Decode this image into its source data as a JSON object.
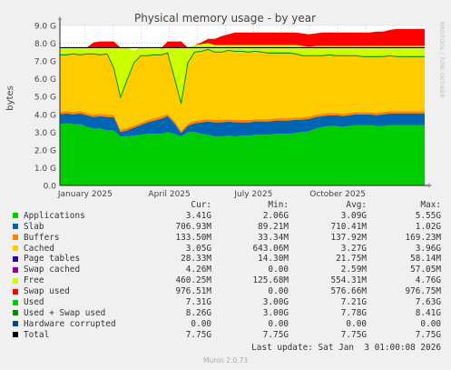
{
  "chart_data": {
    "type": "area",
    "title": "Physical memory usage - by year",
    "ylabel": "bytes",
    "side_text": "RRDTOOL / TOBI OETIKER",
    "ylim": [
      0,
      9.0
    ],
    "yticks": [
      "0.0",
      "1.0 G",
      "2.0 G",
      "3.0 G",
      "4.0 G",
      "5.0 G",
      "6.0 G",
      "7.0 G",
      "8.0 G",
      "9.0 G"
    ],
    "xticks": [
      "January 2025",
      "April 2025",
      "July 2025",
      "October 2025"
    ],
    "x_tick_months": [
      1,
      4,
      7,
      10
    ],
    "x_range_months": [
      0.1,
      13.1
    ],
    "grid": true,
    "total_line": 7.75,
    "series": [
      {
        "name": "Applications",
        "color": "#00cc00",
        "values": [
          3.45,
          3.5,
          3.45,
          3.45,
          3.3,
          3.2,
          3.2,
          3.1,
          3.1,
          2.75,
          2.75,
          2.8,
          2.85,
          2.9,
          2.9,
          2.9,
          3.0,
          2.9,
          2.75,
          3.0,
          3.0,
          2.9,
          2.85,
          2.75,
          2.75,
          2.8,
          2.75,
          2.8,
          2.8,
          2.85,
          2.85,
          2.85,
          2.9,
          2.9,
          2.9,
          2.95,
          3.0,
          3.05,
          3.2,
          3.3,
          3.35,
          3.35,
          3.3,
          3.35,
          3.4,
          3.4,
          3.4,
          3.35,
          3.35,
          3.4,
          3.4,
          3.4,
          3.4,
          3.4
        ]
      },
      {
        "name": "Slab",
        "color": "#0066b3",
        "values": [
          0.55,
          0.55,
          0.55,
          0.6,
          0.65,
          0.65,
          0.7,
          0.75,
          0.75,
          0.25,
          0.35,
          0.45,
          0.55,
          0.65,
          0.75,
          0.85,
          0.9,
          0.6,
          0.2,
          0.35,
          0.5,
          0.65,
          0.75,
          0.8,
          0.8,
          0.8,
          0.8,
          0.75,
          0.75,
          0.75,
          0.75,
          0.75,
          0.75,
          0.75,
          0.75,
          0.75,
          0.7,
          0.7,
          0.65,
          0.6,
          0.6,
          0.6,
          0.6,
          0.6,
          0.6,
          0.6,
          0.6,
          0.6,
          0.65,
          0.65,
          0.65,
          0.65,
          0.65,
          0.65
        ]
      },
      {
        "name": "Buffers",
        "color": "#ff8000",
        "values": [
          0.13,
          0.13,
          0.13,
          0.13,
          0.13,
          0.13,
          0.13,
          0.13,
          0.13,
          0.13,
          0.13,
          0.13,
          0.13,
          0.13,
          0.13,
          0.13,
          0.13,
          0.13,
          0.13,
          0.13,
          0.13,
          0.13,
          0.13,
          0.13,
          0.13,
          0.13,
          0.13,
          0.13,
          0.13,
          0.13,
          0.13,
          0.13,
          0.13,
          0.13,
          0.13,
          0.13,
          0.13,
          0.13,
          0.13,
          0.13,
          0.13,
          0.13,
          0.13,
          0.13,
          0.13,
          0.13,
          0.13,
          0.13,
          0.13,
          0.13,
          0.13,
          0.13,
          0.13,
          0.13
        ]
      },
      {
        "name": "Cached",
        "color": "#ffcc00",
        "values": [
          3.2,
          3.15,
          3.25,
          3.15,
          3.3,
          3.4,
          3.3,
          3.4,
          2.6,
          1.8,
          2.7,
          3.5,
          3.75,
          3.6,
          3.55,
          3.45,
          3.4,
          2.4,
          1.5,
          3.4,
          3.85,
          3.85,
          3.9,
          3.8,
          3.8,
          3.85,
          3.85,
          3.85,
          3.8,
          3.8,
          3.75,
          3.7,
          3.65,
          3.65,
          3.65,
          3.55,
          3.45,
          3.4,
          3.3,
          3.25,
          3.25,
          3.2,
          3.25,
          3.2,
          3.15,
          3.1,
          3.1,
          3.15,
          3.1,
          3.1,
          3.05,
          3.05,
          3.05,
          3.05
        ]
      },
      {
        "name": "Page tables",
        "color": "#330099",
        "values": [
          0.02,
          0.02,
          0.02,
          0.02,
          0.02,
          0.02,
          0.02,
          0.02,
          0.02,
          0.02,
          0.02,
          0.02,
          0.02,
          0.02,
          0.02,
          0.02,
          0.02,
          0.02,
          0.02,
          0.02,
          0.02,
          0.02,
          0.02,
          0.02,
          0.02,
          0.02,
          0.02,
          0.02,
          0.02,
          0.02,
          0.02,
          0.02,
          0.02,
          0.02,
          0.02,
          0.02,
          0.02,
          0.02,
          0.02,
          0.02,
          0.02,
          0.02,
          0.02,
          0.02,
          0.02,
          0.02,
          0.02,
          0.02,
          0.02,
          0.02,
          0.02,
          0.02,
          0.02,
          0.02
        ]
      },
      {
        "name": "Swap cached",
        "color": "#990099",
        "values": [
          0,
          0,
          0,
          0,
          0,
          0,
          0,
          0,
          0,
          0,
          0,
          0,
          0,
          0,
          0,
          0,
          0,
          0,
          0,
          0,
          0,
          0,
          0,
          0,
          0,
          0,
          0,
          0,
          0,
          0,
          0,
          0,
          0,
          0,
          0,
          0,
          0,
          0,
          0,
          0,
          0,
          0,
          0,
          0,
          0,
          0,
          0,
          0,
          0,
          0,
          0,
          0,
          0,
          0
        ]
      },
      {
        "name": "Free",
        "color": "#ccff00",
        "values": [
          0.4,
          0.4,
          0.35,
          0.4,
          0.35,
          0.35,
          0.4,
          0.35,
          1.15,
          2.8,
          1.8,
          0.7,
          0.45,
          0.4,
          0.35,
          0.35,
          0.3,
          1.7,
          3.15,
          0.85,
          0.4,
          0.4,
          0.35,
          0.4,
          0.4,
          0.3,
          0.35,
          0.35,
          0.4,
          0.35,
          0.4,
          0.45,
          0.45,
          0.45,
          0.45,
          0.5,
          0.55,
          0.5,
          0.55,
          0.55,
          0.5,
          0.55,
          0.55,
          0.55,
          0.55,
          0.6,
          0.6,
          0.6,
          0.6,
          0.55,
          0.6,
          0.6,
          0.6,
          0.6
        ]
      },
      {
        "name": "Swap used",
        "color": "#ff0000",
        "values": [
          0,
          0,
          0,
          0,
          0,
          0.3,
          0.35,
          0.35,
          0.35,
          0,
          0,
          0,
          0,
          0,
          0,
          0,
          0.35,
          0.35,
          0.35,
          0,
          0,
          0.1,
          0.25,
          0.35,
          0.5,
          0.6,
          0.7,
          0.7,
          0.7,
          0.7,
          0.7,
          0.7,
          0.7,
          0.7,
          0.7,
          0.7,
          0.7,
          0.7,
          0.7,
          0.75,
          0.75,
          0.75,
          0.75,
          0.75,
          0.75,
          0.75,
          0.75,
          0.8,
          0.8,
          0.9,
          0.95,
          0.95,
          0.95,
          0.95
        ]
      }
    ],
    "x_months": [
      0.1,
      0.34,
      0.58,
      0.82,
      1.06,
      1.3,
      1.54,
      1.78,
      2.02,
      2.26,
      2.5,
      2.74,
      2.98,
      3.22,
      3.46,
      3.7,
      3.94,
      4.18,
      4.42,
      4.66,
      4.9,
      5.14,
      5.38,
      5.62,
      5.86,
      6.1,
      6.34,
      6.58,
      6.82,
      7.06,
      7.3,
      7.54,
      7.78,
      8.02,
      8.26,
      8.5,
      8.74,
      8.98,
      9.22,
      9.46,
      9.7,
      9.94,
      10.18,
      10.42,
      10.66,
      10.9,
      11.14,
      11.38,
      11.62,
      11.86,
      12.1,
      12.34,
      12.58,
      13.1
    ]
  },
  "legend": {
    "headers": {
      "cur": "Cur:",
      "min": "Min:",
      "avg": "Avg:",
      "max": "Max:"
    },
    "rows": [
      {
        "name": "Applications",
        "color": "#00cc00",
        "cur": "3.41G",
        "min": "2.06G",
        "avg": "3.09G",
        "max": "5.55G"
      },
      {
        "name": "Slab",
        "color": "#0066b3",
        "cur": "706.93M",
        "min": "89.21M",
        "avg": "710.41M",
        "max": "1.02G"
      },
      {
        "name": "Buffers",
        "color": "#ff8000",
        "cur": "133.50M",
        "min": "33.34M",
        "avg": "137.92M",
        "max": "169.23M"
      },
      {
        "name": "Cached",
        "color": "#ffcc00",
        "cur": "3.05G",
        "min": "643.06M",
        "avg": "3.27G",
        "max": "3.96G"
      },
      {
        "name": "Page tables",
        "color": "#330099",
        "cur": "28.33M",
        "min": "14.30M",
        "avg": "21.75M",
        "max": "58.14M"
      },
      {
        "name": "Swap cached",
        "color": "#990099",
        "cur": "4.26M",
        "min": "0.00",
        "avg": "2.59M",
        "max": "57.05M"
      },
      {
        "name": "Free",
        "color": "#ccff00",
        "cur": "460.25M",
        "min": "125.68M",
        "avg": "554.31M",
        "max": "4.76G"
      },
      {
        "name": "Swap used",
        "color": "#ff0000",
        "cur": "976.51M",
        "min": "0.00",
        "avg": "576.66M",
        "max": "976.75M"
      },
      {
        "name": "Used",
        "color": "#00cc00",
        "cur": "7.31G",
        "min": "3.00G",
        "avg": "7.21G",
        "max": "7.63G"
      },
      {
        "name": "Used + Swap used",
        "color": "#008f00",
        "cur": "8.26G",
        "min": "3.00G",
        "avg": "7.78G",
        "max": "8.41G"
      },
      {
        "name": "Hardware corrupted",
        "color": "#00487d",
        "cur": "0.00",
        "min": "0.00",
        "avg": "0.00",
        "max": "0.00"
      },
      {
        "name": "Total",
        "color": "#000000",
        "cur": "7.75G",
        "min": "7.75G",
        "avg": "7.75G",
        "max": "7.75G"
      }
    ]
  },
  "footer": {
    "last_update": "Last update: Sat Jan  3 01:00:08 2026",
    "version": "Munin 2.0.73"
  }
}
